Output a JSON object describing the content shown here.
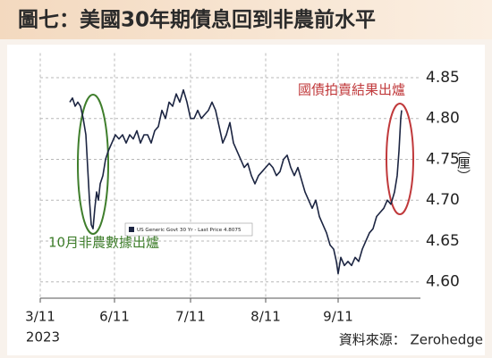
{
  "chart_data": {
    "type": "line",
    "title": "圖七：美國30年期債息回到非農前水平",
    "y_label": "︵厘︶",
    "year_label": "2023",
    "source": "資料來源： Zerohedge",
    "annotations": [
      "國債拍賣結果出爐",
      "10月非農數據出爐"
    ],
    "x": [
      33,
      36,
      39,
      42,
      45,
      48,
      51,
      53,
      55,
      57,
      59,
      61,
      63,
      65,
      67,
      70,
      73,
      76,
      80,
      84,
      88,
      92,
      96,
      100,
      104,
      108,
      112,
      116,
      120,
      124,
      128,
      132,
      136,
      140,
      144,
      148,
      152,
      156,
      160,
      164,
      168,
      172,
      176,
      180,
      184,
      188,
      192,
      196,
      200,
      204,
      208,
      212,
      216,
      220,
      224,
      228,
      232,
      236,
      240,
      244,
      248,
      252,
      256,
      260,
      264,
      268,
      272,
      276,
      280,
      284,
      288,
      292,
      296,
      300,
      304,
      308,
      312,
      316,
      320,
      324,
      328,
      331,
      333,
      336,
      340,
      344,
      348,
      352,
      356,
      360,
      364,
      368,
      372,
      376,
      380,
      384,
      388,
      392,
      396,
      399,
      401,
      403,
      404
    ],
    "series": [
      {
        "name": "US Generic Govt 30 Yr - Last Price 4.8075",
        "color": "#1c2542",
        "values": [
          4.82,
          4.825,
          4.815,
          4.82,
          4.815,
          4.8,
          4.78,
          4.74,
          4.7,
          4.67,
          4.665,
          4.69,
          4.71,
          4.7,
          4.72,
          4.73,
          4.75,
          4.76,
          4.77,
          4.78,
          4.775,
          4.78,
          4.77,
          4.78,
          4.775,
          4.785,
          4.77,
          4.78,
          4.78,
          4.77,
          4.785,
          4.79,
          4.81,
          4.8,
          4.82,
          4.815,
          4.83,
          4.82,
          4.835,
          4.82,
          4.8,
          4.8,
          4.81,
          4.8,
          4.805,
          4.81,
          4.82,
          4.81,
          4.79,
          4.77,
          4.78,
          4.795,
          4.77,
          4.76,
          4.75,
          4.74,
          4.745,
          4.73,
          4.72,
          4.73,
          4.735,
          4.74,
          4.745,
          4.74,
          4.73,
          4.735,
          4.75,
          4.755,
          4.74,
          4.73,
          4.74,
          4.725,
          4.71,
          4.7,
          4.69,
          4.7,
          4.68,
          4.67,
          4.66,
          4.645,
          4.64,
          4.625,
          4.61,
          4.63,
          4.62,
          4.625,
          4.62,
          4.63,
          4.625,
          4.64,
          4.65,
          4.66,
          4.665,
          4.68,
          4.685,
          4.69,
          4.7,
          4.695,
          4.71,
          4.73,
          4.76,
          4.8,
          4.81
        ]
      }
    ],
    "xlim": [
      0,
      425
    ],
    "xticks": [
      {
        "value": 0,
        "label": "3/11"
      },
      {
        "value": 83,
        "label": "6/11"
      },
      {
        "value": 168,
        "label": "7/11"
      },
      {
        "value": 252,
        "label": "8/11"
      },
      {
        "value": 333,
        "label": "9/11"
      }
    ],
    "ylim": [
      4.58,
      4.88
    ],
    "yticks": [
      {
        "value": 4.6,
        "label": "4.60"
      },
      4.65,
      {
        "value": 4.7,
        "label": "4.70"
      },
      4.75,
      {
        "value": 4.8,
        "label": "4.80"
      },
      4.85
    ],
    "grid": true
  }
}
